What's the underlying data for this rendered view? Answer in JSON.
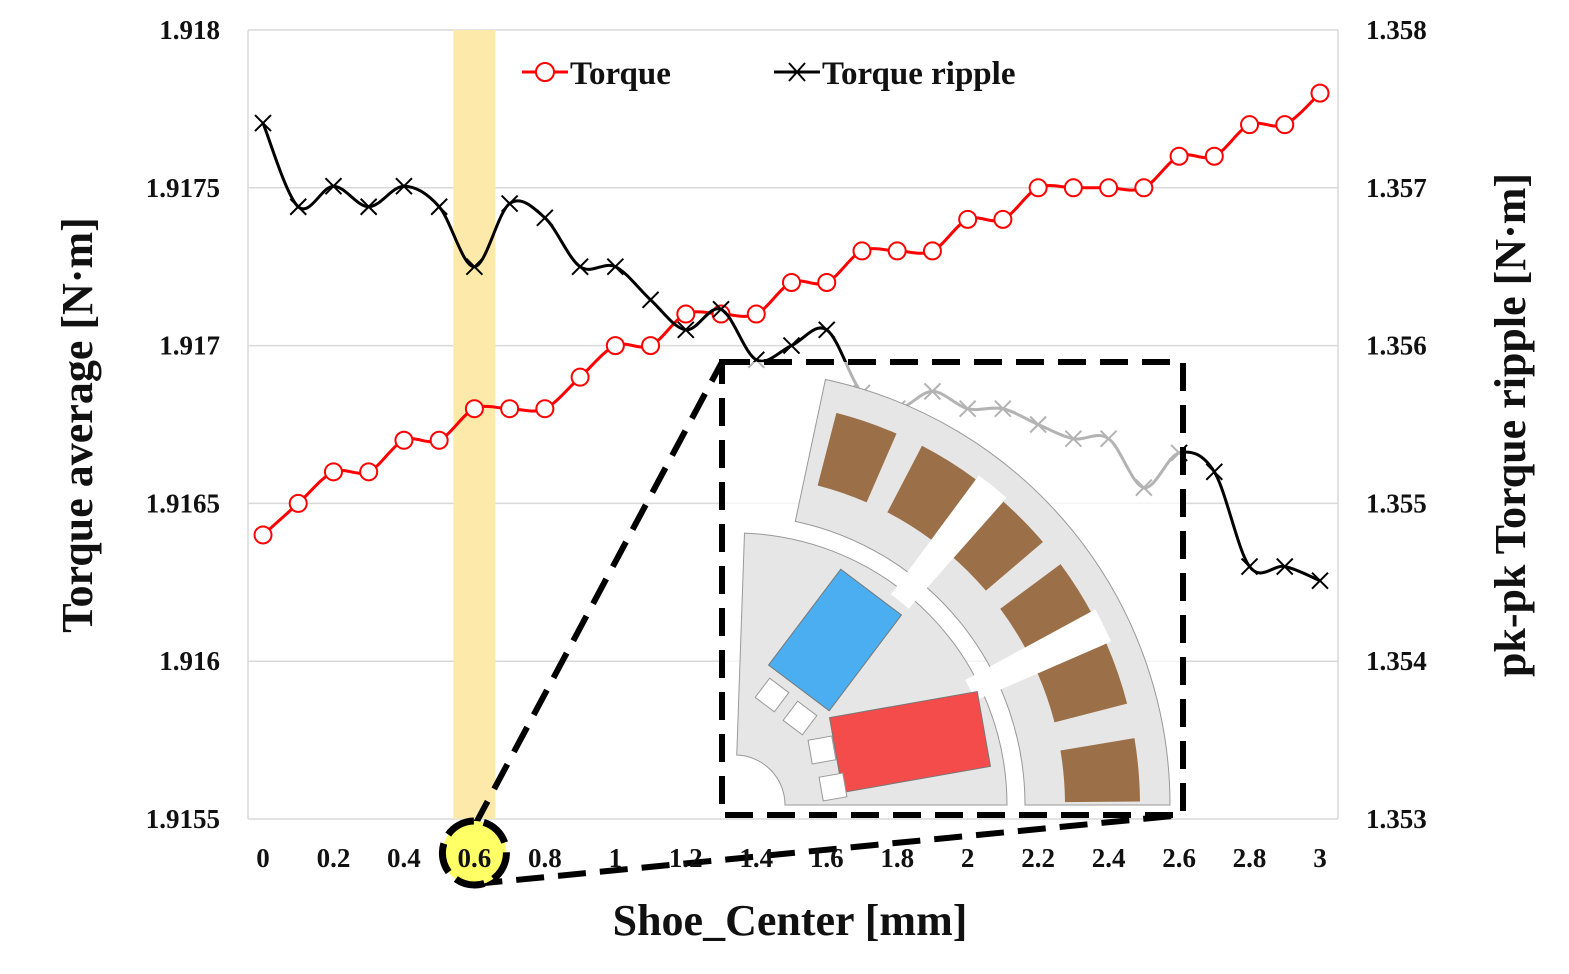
{
  "chart_data": {
    "type": "line",
    "xlabel": "Shoe_Center [mm]",
    "ylabel_left": "Torque average [N·m]",
    "ylabel_right": "pk-pk Torque ripple [N·m]",
    "xlim": [
      0,
      3
    ],
    "ylim_left": [
      1.9155,
      1.918
    ],
    "ylim_right": [
      1.353,
      1.358
    ],
    "x_ticks": [
      "0",
      "0.2",
      "0.4",
      "0.6",
      "0.8",
      "1",
      "1.2",
      "1.4",
      "1.6",
      "1.8",
      "2",
      "2.2",
      "2.4",
      "2.6",
      "2.8",
      "3"
    ],
    "y_ticks_left": [
      "1.9155",
      "1.916",
      "1.9165",
      "1.917",
      "1.9175",
      "1.918"
    ],
    "y_ticks_right": [
      "1.353",
      "1.354",
      "1.355",
      "1.356",
      "1.357",
      "1.358"
    ],
    "grid": true,
    "legend_position": "top-center",
    "highlight_x": 0.6,
    "x": [
      0,
      0.1,
      0.2,
      0.3,
      0.4,
      0.5,
      0.6,
      0.7,
      0.8,
      0.9,
      1.0,
      1.1,
      1.2,
      1.3,
      1.4,
      1.5,
      1.6,
      1.7,
      1.8,
      1.9,
      2.0,
      2.1,
      2.2,
      2.3,
      2.4,
      2.5,
      2.6,
      2.7,
      2.8,
      2.9,
      3.0
    ],
    "series": [
      {
        "name": "Torque",
        "axis": "left",
        "color": "#ff0000",
        "marker": "circle",
        "values": [
          1.9164,
          1.9165,
          1.9166,
          1.9166,
          1.9167,
          1.9167,
          1.9168,
          1.9168,
          1.9168,
          1.9169,
          1.917,
          1.917,
          1.9171,
          1.9171,
          1.9171,
          1.9172,
          1.9172,
          1.9173,
          1.9173,
          1.9173,
          1.9174,
          1.9174,
          1.9175,
          1.9175,
          1.9175,
          1.9175,
          1.9176,
          1.9176,
          1.9177,
          1.9177,
          1.9178
        ]
      },
      {
        "name": "Torque ripple",
        "axis": "right",
        "color": "#000000",
        "marker": "x",
        "values": [
          1.35741,
          1.35688,
          1.35701,
          1.35688,
          1.35701,
          1.35688,
          1.3565,
          1.3569,
          1.35681,
          1.3565,
          1.3565,
          1.35629,
          1.3561,
          1.35623,
          1.35591,
          1.356,
          1.3561,
          1.3557,
          1.3556,
          1.35571,
          1.3556,
          1.3556,
          1.3555,
          1.35541,
          1.35541,
          1.3551,
          1.35532,
          1.3552,
          1.3546,
          1.3546,
          1.35451
        ]
      }
    ]
  },
  "colors": {
    "highlight": "#fde9a9",
    "callout": "#ffff66",
    "slot": "#9b7048",
    "magnet_a": "#4aaef0",
    "magnet_b": "#f44b4b",
    "core": "#e6e6e6"
  }
}
